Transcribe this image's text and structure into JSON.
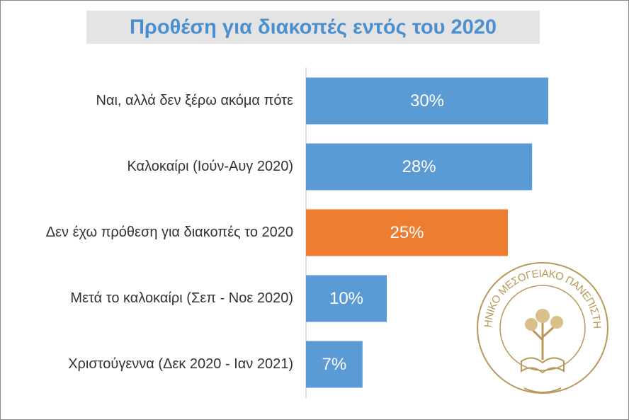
{
  "chart_data": {
    "type": "bar",
    "orientation": "horizontal",
    "title": "Προθέση για διακοπές εντός του 2020",
    "categories": [
      "Ναι, αλλά δεν ξέρω ακόμα πότε",
      "Καλοκαίρι (Ιούν-Αυγ 2020)",
      "Δεν έχω πρόθεση για διακοπές το 2020",
      "Μετά το καλοκαίρι (Σεπ - Νοε 2020)",
      "Χριστούγεννα (Δεκ 2020 - Ιαν 2021)"
    ],
    "values": [
      30,
      28,
      25,
      10,
      7
    ],
    "value_labels": [
      "30%",
      "28%",
      "25%",
      "10%",
      "7%"
    ],
    "colors": [
      "#5b9bd5",
      "#5b9bd5",
      "#ed7d31",
      "#5b9bd5",
      "#5b9bd5"
    ]
  },
  "logo_text": "ΕΛΛΗΝΙΚΟ ΜΕΣΟΓΕΙΑΚΟ ΠΑΝΕΠΙΣΤΗΜΙΟ"
}
